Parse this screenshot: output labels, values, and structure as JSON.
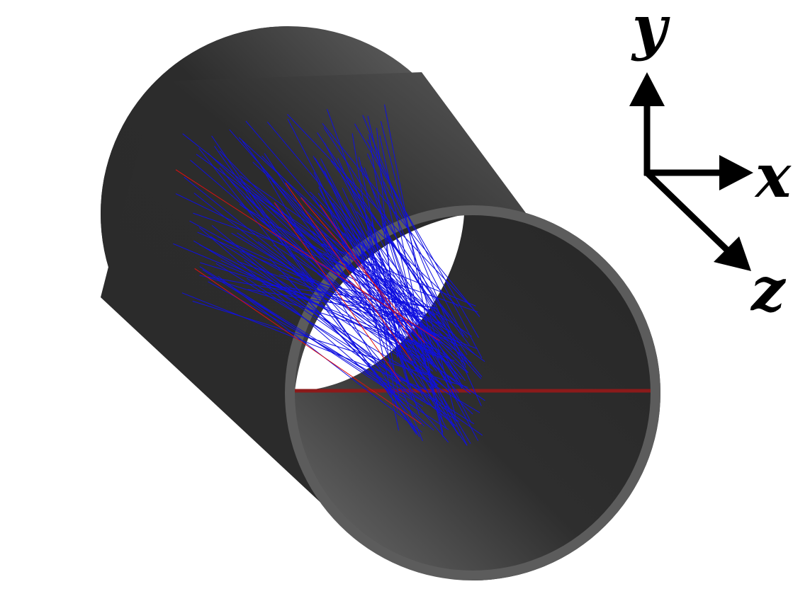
{
  "axes": {
    "y_label": "y",
    "x_label": "x",
    "z_label": "z"
  },
  "colors": {
    "background": "#ffffff",
    "tube_dark": "#2a2a2a",
    "tube_light": "#6a6a6a",
    "rim": "#5c5c5c",
    "cut_plane_line": "#8b1a1a",
    "ray_primary": "#1010e0",
    "ray_secondary": "#e01010",
    "axis": "#000000"
  },
  "rays": {
    "primary_count": 140,
    "secondary_count": 6
  }
}
